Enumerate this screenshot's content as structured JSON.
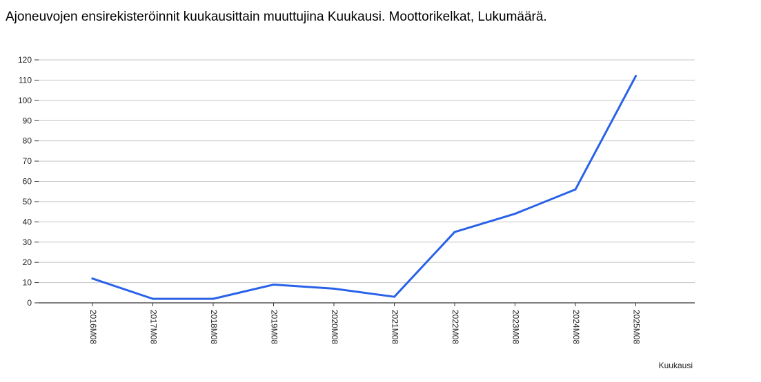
{
  "chart_data": {
    "type": "line",
    "title": "Ajoneuvojen ensirekisteröinnit kuukausittain muuttujina Kuukausi. Moottorikelkat, Lukumäärä.",
    "xlabel": "Kuukausi",
    "ylabel": "",
    "categories": [
      "2016M08",
      "2017M08",
      "2018M08",
      "2019M08",
      "2020M08",
      "2021M08",
      "2022M08",
      "2023M08",
      "2024M08",
      "2025M08"
    ],
    "series": [
      {
        "values": [
          12,
          2,
          2,
          9,
          7,
          3,
          35,
          44,
          56,
          112
        ],
        "color": "#2962e8"
      }
    ],
    "ylim": [
      0,
      120
    ],
    "yticks": [
      0,
      10,
      20,
      30,
      40,
      50,
      60,
      70,
      80,
      90,
      100,
      110,
      120
    ],
    "grid": true,
    "legend": "none",
    "gridColor": "#c4c4c4",
    "axisColor": "#333333"
  }
}
